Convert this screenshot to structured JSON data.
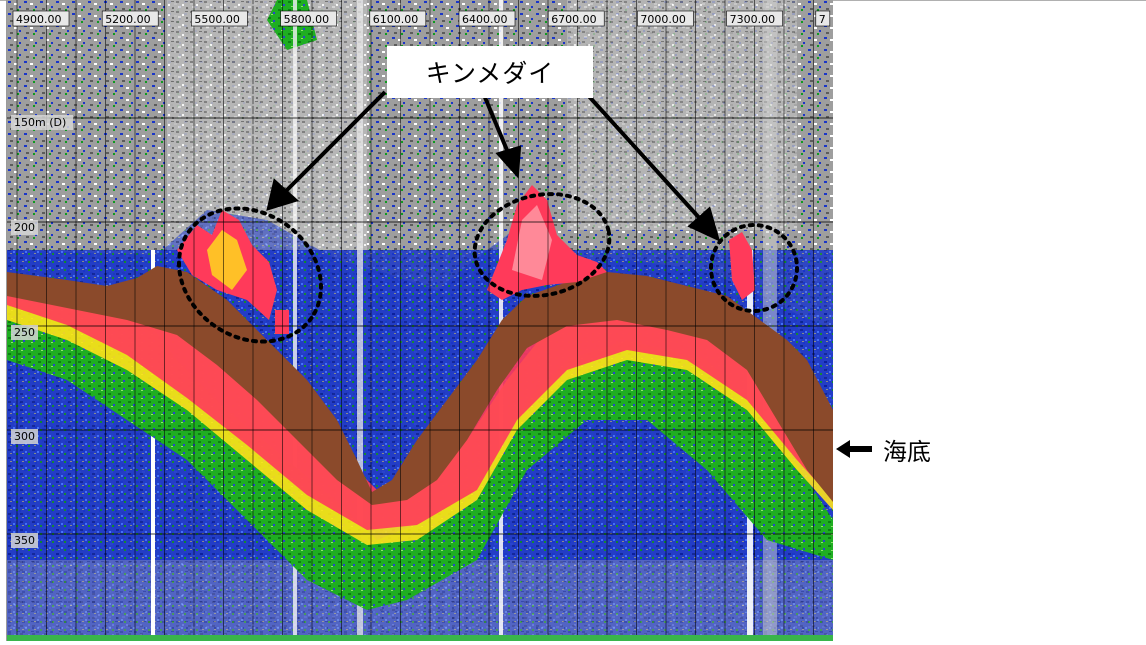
{
  "window": {
    "title": "",
    "accent_color": "#2e8b57"
  },
  "echogram": {
    "x_ticks": [
      "4900.00",
      "5200.00",
      "5500.00",
      "5800.00",
      "6100.00",
      "6400.00",
      "6700.00",
      "7000.00",
      "7300.00",
      "7"
    ],
    "depth_ticks": [
      "150m (D)",
      "200",
      "250",
      "300",
      "350"
    ],
    "colors": {
      "seabed": "#8b4a2b",
      "strong": "#ff2a2a",
      "pink": "#ff5a8c",
      "yellow": "#ffe21a",
      "green": "#16a81c",
      "blue": "#1230c8",
      "grey_noise": "#8a8a8a",
      "bottom_bar": "#39b54a"
    }
  },
  "annotations": {
    "kinmedai_label": "キンメダイ",
    "seafloor_label": "海底",
    "arrow_icon": "left-arrow-icon"
  }
}
